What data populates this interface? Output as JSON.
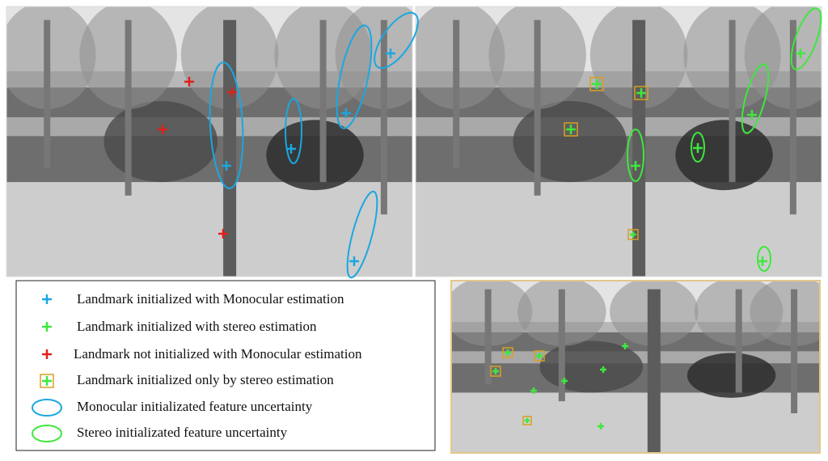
{
  "legend": {
    "items": [
      {
        "label": "Landmark initialized with Monocular estimation"
      },
      {
        "label": "Landmark initialized with stereo estimation"
      },
      {
        "label": "Landmark not initialized with Monocular estimation"
      },
      {
        "label": "Landmark initialized only by stereo estimation"
      },
      {
        "label": "Monocular initializated feature uncertainty"
      },
      {
        "label": "Stereo initializated feature uncertainty"
      }
    ]
  }
}
